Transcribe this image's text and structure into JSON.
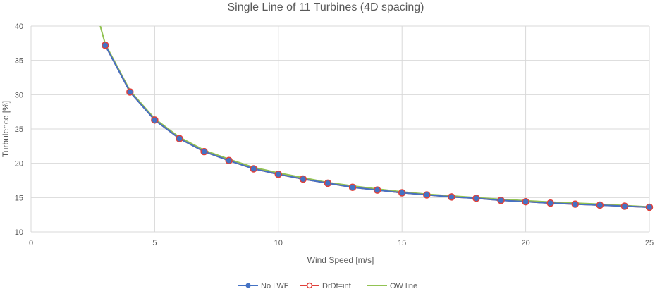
{
  "chart_data": {
    "type": "line",
    "title": "Single Line of 11 Turbines (4D spacing)",
    "xlabel": "Wind Speed [m/s]",
    "ylabel": "Turbulence [%]",
    "xlim": [
      0,
      25
    ],
    "ylim": [
      10,
      40
    ],
    "xticks": [
      0,
      5,
      10,
      15,
      20,
      25
    ],
    "yticks": [
      10,
      15,
      20,
      25,
      30,
      35,
      40
    ],
    "grid": true,
    "legend_position": "bottom",
    "x": [
      3,
      4,
      5,
      6,
      7,
      8,
      9,
      10,
      11,
      12,
      13,
      14,
      15,
      16,
      17,
      18,
      19,
      20,
      21,
      22,
      23,
      24,
      25
    ],
    "series": [
      {
        "name": "No LWF",
        "color": "#4472C4",
        "marker": "circle-filled",
        "values": [
          37.2,
          30.4,
          26.3,
          23.6,
          21.7,
          20.4,
          19.2,
          18.4,
          17.7,
          17.1,
          16.5,
          16.1,
          15.7,
          15.4,
          15.1,
          14.9,
          14.6,
          14.4,
          14.2,
          14.05,
          13.9,
          13.75,
          13.6
        ]
      },
      {
        "name": "DrDf=inf",
        "color": "#E0403A",
        "marker": "circle-open",
        "values": [
          37.2,
          30.4,
          26.3,
          23.6,
          21.7,
          20.4,
          19.2,
          18.4,
          17.7,
          17.1,
          16.5,
          16.1,
          15.7,
          15.4,
          15.1,
          14.9,
          14.6,
          14.4,
          14.2,
          14.05,
          13.9,
          13.75,
          13.6
        ]
      },
      {
        "name": "OW line",
        "color": "#92C353",
        "marker": "none",
        "x": [
          2.8,
          3,
          4,
          5,
          6,
          7,
          8,
          9,
          10,
          11,
          12,
          13,
          14,
          15,
          16,
          17,
          18,
          19,
          20,
          21,
          22,
          23,
          24,
          25
        ],
        "values": [
          40,
          37.4,
          30.6,
          26.5,
          23.8,
          21.9,
          20.6,
          19.4,
          18.6,
          17.9,
          17.2,
          16.7,
          16.25,
          15.85,
          15.5,
          15.25,
          15.0,
          14.75,
          14.55,
          14.35,
          14.2,
          14.05,
          13.85,
          13.65
        ]
      }
    ]
  }
}
